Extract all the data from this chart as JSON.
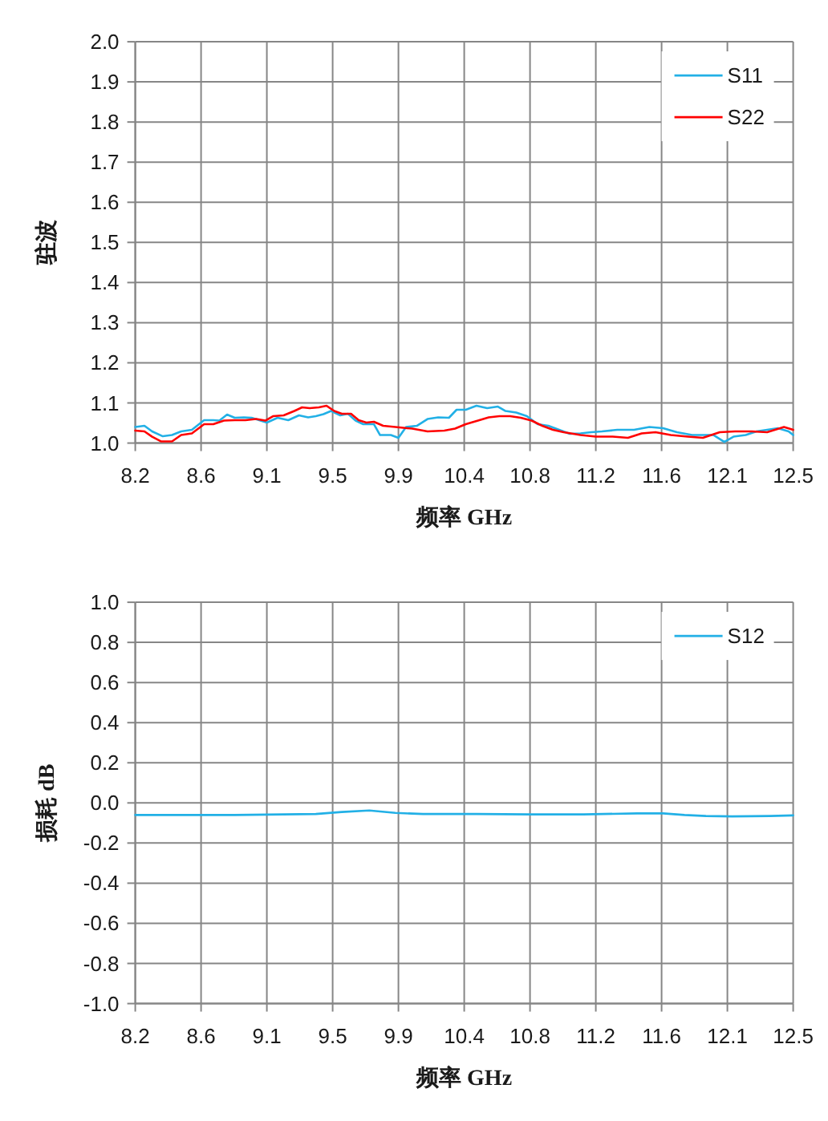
{
  "chart_data": [
    {
      "type": "line",
      "xlabel": "频率 GHz",
      "ylabel": "驻波",
      "xlim": [
        8.2,
        12.5
      ],
      "xticks": [
        {
          "value": 8.2,
          "label": "8.2"
        },
        {
          "value": 8.63,
          "label": "8.6"
        },
        {
          "value": 9.06,
          "label": "9.1"
        },
        {
          "value": 9.49,
          "label": "9.5"
        },
        {
          "value": 9.92,
          "label": "9.9"
        },
        {
          "value": 10.35,
          "label": "10.4"
        },
        {
          "value": 10.78,
          "label": "10.8"
        },
        {
          "value": 11.21,
          "label": "11.2"
        },
        {
          "value": 11.64,
          "label": "11.6"
        },
        {
          "value": 12.07,
          "label": "12.1"
        },
        {
          "value": 12.5,
          "label": "12.5"
        }
      ],
      "ylim": [
        1,
        2
      ],
      "yticks": [
        {
          "value": 1,
          "label": "1.0"
        },
        1.1,
        1.2,
        1.3,
        1.4,
        1.5,
        1.6,
        1.7,
        1.8,
        1.9,
        {
          "value": 2,
          "label": "2.0"
        }
      ],
      "grid": true,
      "legend": "top right",
      "series": [
        {
          "name": "S11",
          "color": "#22b0e6",
          "x": [
            8.2,
            8.26,
            8.31,
            8.38,
            8.44,
            8.5,
            8.57,
            8.65,
            8.71,
            8.75,
            8.8,
            8.85,
            8.91,
            8.96,
            9.01,
            9.06,
            9.13,
            9.2,
            9.27,
            9.33,
            9.38,
            9.43,
            9.48,
            9.54,
            9.59,
            9.64,
            9.69,
            9.76,
            9.8,
            9.87,
            9.92,
            9.97,
            10.04,
            10.11,
            10.18,
            10.25,
            10.3,
            10.36,
            10.43,
            10.5,
            10.57,
            10.62,
            10.69,
            10.76,
            10.83,
            10.9,
            10.97,
            11.04,
            11.11,
            11.18,
            11.25,
            11.35,
            11.46,
            11.56,
            11.65,
            11.74,
            11.84,
            11.91,
            11.98,
            12.05,
            12.11,
            12.19,
            12.26,
            12.33,
            12.4,
            12.47,
            12.5
          ],
          "values": [
            1.04,
            1.043,
            1.029,
            1.017,
            1.02,
            1.029,
            1.033,
            1.057,
            1.057,
            1.056,
            1.071,
            1.063,
            1.064,
            1.063,
            1.057,
            1.051,
            1.063,
            1.057,
            1.069,
            1.064,
            1.067,
            1.072,
            1.08,
            1.069,
            1.073,
            1.056,
            1.047,
            1.047,
            1.02,
            1.02,
            1.013,
            1.04,
            1.043,
            1.06,
            1.064,
            1.063,
            1.083,
            1.083,
            1.093,
            1.087,
            1.091,
            1.08,
            1.076,
            1.067,
            1.047,
            1.043,
            1.033,
            1.023,
            1.024,
            1.027,
            1.029,
            1.033,
            1.033,
            1.04,
            1.037,
            1.027,
            1.02,
            1.02,
            1.02,
            1.003,
            1.016,
            1.02,
            1.029,
            1.033,
            1.037,
            1.029,
            1.02
          ]
        },
        {
          "name": "S22",
          "color": "#ff0000",
          "x": [
            8.2,
            8.26,
            8.31,
            8.37,
            8.44,
            8.5,
            8.57,
            8.65,
            8.71,
            8.78,
            8.85,
            8.92,
            8.99,
            9.05,
            9.1,
            9.17,
            9.24,
            9.29,
            9.34,
            9.4,
            9.45,
            9.5,
            9.55,
            9.61,
            9.66,
            9.71,
            9.76,
            9.82,
            9.9,
            10.01,
            10.11,
            10.22,
            10.29,
            10.36,
            10.44,
            10.51,
            10.58,
            10.65,
            10.72,
            10.79,
            10.86,
            10.93,
            11.0,
            11.11,
            11.21,
            11.32,
            11.42,
            11.51,
            11.6,
            11.7,
            11.81,
            11.91,
            12.02,
            12.12,
            12.23,
            12.33,
            12.44,
            12.5
          ],
          "values": [
            1.031,
            1.029,
            1.016,
            1.004,
            1.004,
            1.02,
            1.024,
            1.047,
            1.047,
            1.056,
            1.057,
            1.057,
            1.06,
            1.056,
            1.067,
            1.069,
            1.08,
            1.089,
            1.087,
            1.089,
            1.093,
            1.08,
            1.073,
            1.073,
            1.057,
            1.051,
            1.053,
            1.043,
            1.04,
            1.036,
            1.029,
            1.031,
            1.036,
            1.047,
            1.056,
            1.064,
            1.067,
            1.067,
            1.063,
            1.056,
            1.043,
            1.033,
            1.027,
            1.02,
            1.016,
            1.016,
            1.013,
            1.024,
            1.027,
            1.02,
            1.016,
            1.013,
            1.027,
            1.029,
            1.029,
            1.027,
            1.04,
            1.033
          ]
        }
      ]
    },
    {
      "type": "line",
      "xlabel": "频率 GHz",
      "ylabel": "损耗 dB",
      "xlim": [
        8.2,
        12.5
      ],
      "xticks": [
        {
          "value": 8.2,
          "label": "8.2"
        },
        {
          "value": 8.63,
          "label": "8.6"
        },
        {
          "value": 9.06,
          "label": "9.1"
        },
        {
          "value": 9.49,
          "label": "9.5"
        },
        {
          "value": 9.92,
          "label": "9.9"
        },
        {
          "value": 10.35,
          "label": "10.4"
        },
        {
          "value": 10.78,
          "label": "10.8"
        },
        {
          "value": 11.21,
          "label": "11.2"
        },
        {
          "value": 11.64,
          "label": "11.6"
        },
        {
          "value": 12.07,
          "label": "12.1"
        },
        {
          "value": 12.5,
          "label": "12.5"
        }
      ],
      "ylim": [
        -1,
        1
      ],
      "yticks": [
        {
          "value": -1,
          "label": "-1.0"
        },
        -0.8,
        -0.6,
        -0.4,
        -0.2,
        {
          "value": 0,
          "label": "0.0"
        },
        0.2,
        0.4,
        0.6,
        0.8,
        {
          "value": 1,
          "label": "1.0"
        }
      ],
      "grid": true,
      "legend": "top right",
      "series": [
        {
          "name": "S12",
          "color": "#22b0e6",
          "x": [
            8.2,
            8.85,
            9.38,
            9.55,
            9.73,
            9.9,
            10.08,
            10.43,
            10.78,
            11.13,
            11.48,
            11.65,
            11.79,
            11.93,
            12.1,
            12.35,
            12.5
          ],
          "values": [
            -0.06,
            -0.06,
            -0.055,
            -0.045,
            -0.038,
            -0.05,
            -0.055,
            -0.055,
            -0.057,
            -0.057,
            -0.052,
            -0.052,
            -0.06,
            -0.065,
            -0.067,
            -0.065,
            -0.062
          ]
        }
      ]
    }
  ]
}
